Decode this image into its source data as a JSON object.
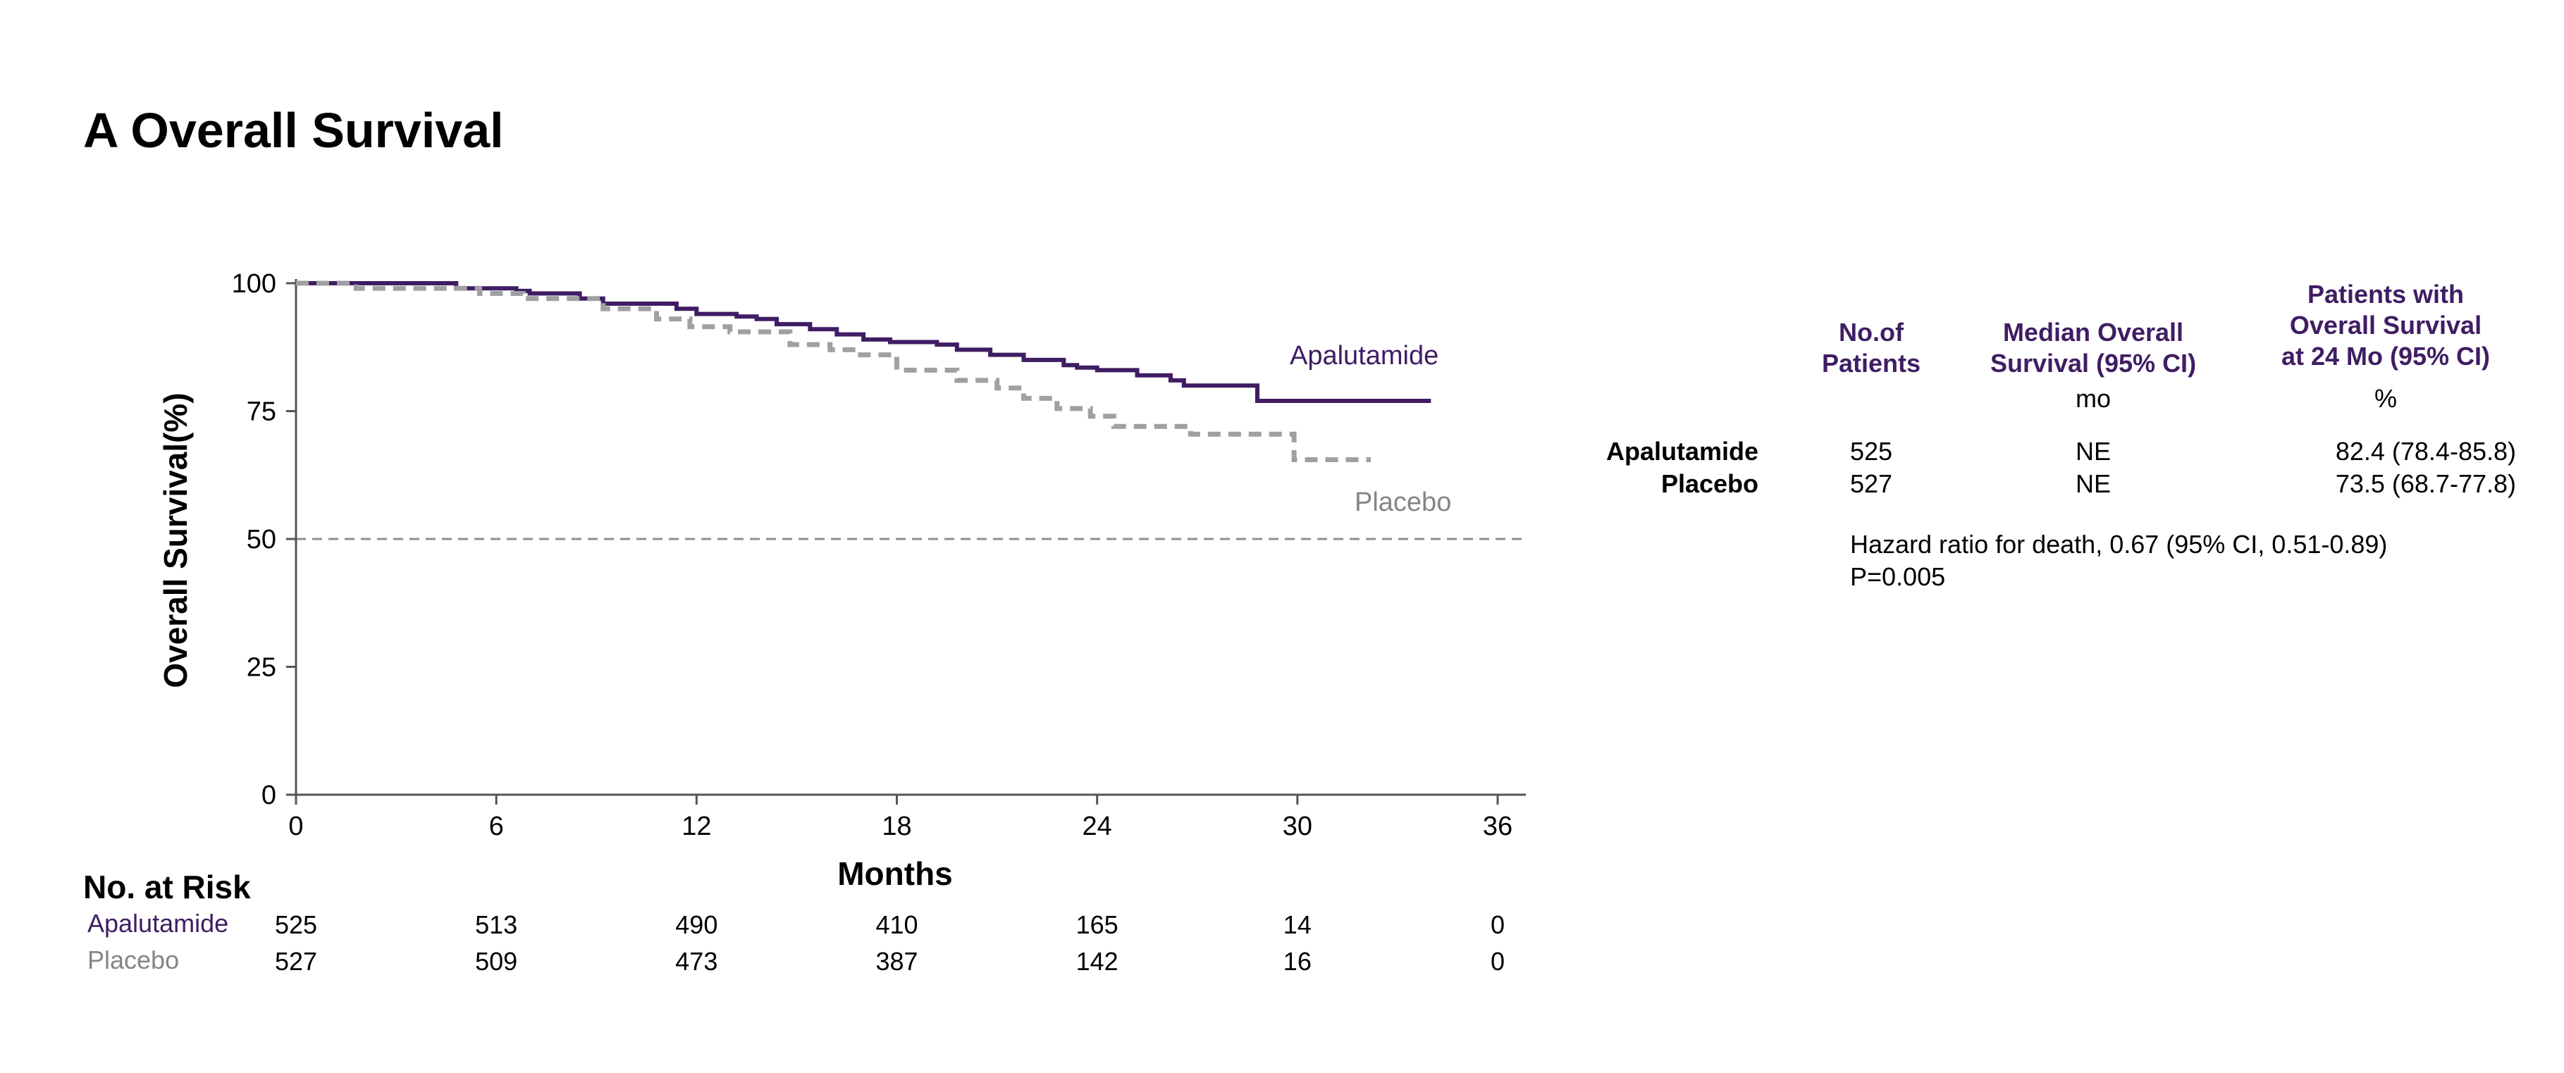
{
  "title": "A Overall Survival",
  "chart_data": {
    "type": "line",
    "xlabel": "Months",
    "ylabel": "Overall Survival(%)",
    "xlim": [
      0,
      36
    ],
    "ylim": [
      0,
      100
    ],
    "xticks": [
      "0",
      "6",
      "12",
      "18",
      "24",
      "30",
      "36"
    ],
    "yticks": [
      "0",
      "25",
      "50",
      "75",
      "100"
    ],
    "reference_line": {
      "y": 50,
      "style": "dashed"
    },
    "series": [
      {
        "name": "Apalutamide",
        "color": "#3f1d63",
        "style": "solid",
        "points": [
          [
            0,
            100
          ],
          [
            4.8,
            100
          ],
          [
            4.8,
            99
          ],
          [
            6.6,
            99
          ],
          [
            6.6,
            98.5
          ],
          [
            7,
            98.5
          ],
          [
            7,
            98
          ],
          [
            8.5,
            98
          ],
          [
            8.5,
            97
          ],
          [
            9.2,
            97
          ],
          [
            9.2,
            96
          ],
          [
            11.4,
            96
          ],
          [
            11.4,
            95
          ],
          [
            12,
            95
          ],
          [
            12,
            94
          ],
          [
            13.2,
            94
          ],
          [
            13.2,
            93.5
          ],
          [
            13.8,
            93.5
          ],
          [
            13.8,
            93
          ],
          [
            14.4,
            93
          ],
          [
            14.4,
            92
          ],
          [
            15.4,
            92
          ],
          [
            15.4,
            91
          ],
          [
            16.2,
            91
          ],
          [
            16.2,
            90
          ],
          [
            17,
            90
          ],
          [
            17,
            89
          ],
          [
            17.8,
            89
          ],
          [
            17.8,
            88.5
          ],
          [
            19.2,
            88.5
          ],
          [
            19.2,
            88
          ],
          [
            19.8,
            88
          ],
          [
            19.8,
            87
          ],
          [
            20.8,
            87
          ],
          [
            20.8,
            86
          ],
          [
            21.8,
            86
          ],
          [
            21.8,
            85
          ],
          [
            23,
            85
          ],
          [
            23,
            84
          ],
          [
            23.4,
            84
          ],
          [
            23.4,
            83.5
          ],
          [
            24,
            83.5
          ],
          [
            24,
            83
          ],
          [
            25.2,
            83
          ],
          [
            25.2,
            82
          ],
          [
            26.2,
            82
          ],
          [
            26.2,
            81
          ],
          [
            26.6,
            81
          ],
          [
            26.6,
            80
          ],
          [
            28.8,
            80
          ],
          [
            28.8,
            77
          ],
          [
            34,
            77
          ]
        ]
      },
      {
        "name": "Placebo",
        "color": "#a0a0a2",
        "style": "dashed",
        "points": [
          [
            0,
            100
          ],
          [
            1.8,
            100
          ],
          [
            1.8,
            99
          ],
          [
            5.5,
            99
          ],
          [
            5.5,
            98
          ],
          [
            6.8,
            98
          ],
          [
            6.8,
            97
          ],
          [
            9.2,
            97
          ],
          [
            9.2,
            95
          ],
          [
            10.8,
            95
          ],
          [
            10.8,
            93
          ],
          [
            11.8,
            93
          ],
          [
            11.8,
            91.5
          ],
          [
            13,
            91.5
          ],
          [
            13,
            90.5
          ],
          [
            14.8,
            90.5
          ],
          [
            14.8,
            88
          ],
          [
            16,
            88
          ],
          [
            16,
            87
          ],
          [
            16.8,
            87
          ],
          [
            16.8,
            86
          ],
          [
            18,
            86
          ],
          [
            18,
            83
          ],
          [
            19.8,
            83
          ],
          [
            19.8,
            81
          ],
          [
            21,
            81
          ],
          [
            21,
            79.5
          ],
          [
            21.8,
            79.5
          ],
          [
            21.8,
            77.5
          ],
          [
            22.8,
            77.5
          ],
          [
            22.8,
            75.5
          ],
          [
            23.8,
            75.5
          ],
          [
            23.8,
            74
          ],
          [
            24.5,
            74
          ],
          [
            24.5,
            72
          ],
          [
            26.8,
            72
          ],
          [
            26.8,
            70.5
          ],
          [
            29.9,
            70.5
          ],
          [
            29.9,
            65.5
          ],
          [
            32.2,
            65.5
          ]
        ]
      }
    ]
  },
  "series_labels": {
    "apalutamide": "Apalutamide",
    "placebo": "Placebo"
  },
  "at_risk": {
    "title": "No. at Risk",
    "rows": [
      {
        "label": "Apalutamide",
        "color": "#3f1d63",
        "values": [
          "525",
          "513",
          "490",
          "410",
          "165",
          "14",
          "0"
        ]
      },
      {
        "label": "Placebo",
        "color": "#858585",
        "values": [
          "527",
          "509",
          "473",
          "387",
          "142",
          "16",
          "0"
        ]
      }
    ]
  },
  "summary_table": {
    "headers": {
      "patients": [
        "No.of",
        "Patients"
      ],
      "median": [
        "Median Overall",
        "Survival (95% CI)"
      ],
      "os24": [
        "Patients with",
        "Overall Survival",
        "at 24 Mo (95% CI)"
      ]
    },
    "units": {
      "median": "mo",
      "os24": "%"
    },
    "rows": [
      {
        "label": "Apalutamide",
        "patients": "525",
        "median": "NE",
        "os24": "82.4 (78.4-85.8)"
      },
      {
        "label": "Placebo",
        "patients": "527",
        "median": "NE",
        "os24": "73.5 (68.7-77.8)"
      }
    ],
    "notes": [
      "Hazard ratio for death, 0.67 (95% CI, 0.51-0.89)",
      "P=0.005"
    ]
  }
}
